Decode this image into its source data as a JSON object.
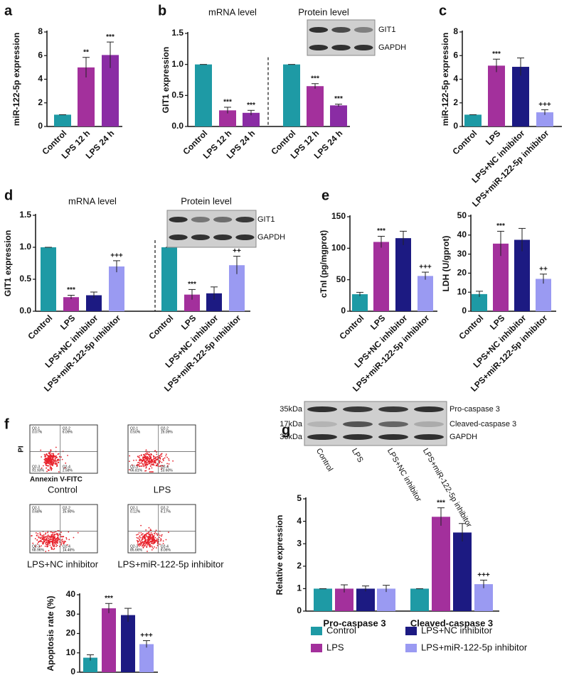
{
  "panel_labels": [
    "a",
    "b",
    "c",
    "d",
    "e",
    "f",
    "g"
  ],
  "blots": [
    {
      "bands": [
        "GIT1",
        "GAPDH"
      ]
    },
    {
      "bands": [
        "GIT1",
        "GAPDH"
      ]
    },
    {
      "sizes": [
        "35kDa",
        "17kDa",
        "36kDa"
      ],
      "bands": [
        "Pro-caspase 3",
        "Cleaved-caspase 3",
        "GAPDH"
      ]
    }
  ],
  "flow": {
    "x_label": "Annexin V-FITC",
    "y_label": "PI",
    "plots": [
      {
        "label": "Control",
        "quadrants": [
          {
            "name": "Q2-1",
            "percent": "0.07%"
          },
          {
            "name": "Q2-2",
            "percent": "6.09%"
          },
          {
            "name": "Q2-3",
            "percent": "91.93%"
          },
          {
            "name": "Q2-4",
            "percent": "2.58%"
          }
        ]
      },
      {
        "label": "LPS",
        "quadrants": [
          {
            "name": "Q2-1",
            "percent": "0.50%"
          },
          {
            "name": "Q2-2",
            "percent": "19.09%"
          },
          {
            "name": "Q2-3",
            "percent": "66.81%"
          },
          {
            "name": "Q2-4",
            "percent": "13.60%"
          }
        ]
      },
      {
        "label": "LPS+NC inhibitor",
        "quadrants": [
          {
            "name": "Q2-1",
            "percent": "0.68%"
          },
          {
            "name": "Q2-2",
            "percent": "15.90%"
          },
          {
            "name": "Q2-3",
            "percent": "68.96%"
          },
          {
            "name": "Q2-4",
            "percent": "14.46%"
          }
        ]
      },
      {
        "label": "LPS+miR-122-5p inhibitor",
        "quadrants": [
          {
            "name": "Q2-1",
            "percent": "0.12%"
          },
          {
            "name": "Q2-2",
            "percent": "6.17%"
          },
          {
            "name": "Q2-3",
            "percent": "85.66%"
          },
          {
            "name": "Q2-4",
            "percent": "8.06%"
          }
        ]
      }
    ]
  },
  "chart_data": [
    {
      "type": "bar",
      "ylabel": "miR-122-5p expression",
      "ylim": [
        0,
        8
      ],
      "yticks": [
        0,
        2,
        4,
        6,
        8
      ],
      "groups": [
        {
          "categories": [
            "Control",
            "LPS 12 h",
            "LPS 24 h"
          ],
          "values": [
            1,
            5,
            6.05
          ],
          "errors": [
            0,
            0.85,
            1.1
          ],
          "significance": [
            null,
            "**",
            "***"
          ],
          "colors": [
            "#1e9aa5",
            "#a3309c",
            "#8a2ca4"
          ]
        }
      ]
    },
    {
      "type": "bar",
      "ylabel": "GIT1 expression",
      "ylim": [
        0,
        1.5
      ],
      "yticks": [
        {
          "value": 0,
          "label": "0.0"
        },
        0.5,
        {
          "value": 1,
          "label": "1.0"
        },
        1.5
      ],
      "groups": [
        {
          "name": "mRNA level",
          "categories": [
            "Control",
            "LPS 12 h",
            "LPS 24 h"
          ],
          "values": [
            1,
            0.26,
            0.22
          ],
          "errors": [
            0,
            0.05,
            0.04
          ],
          "significance": [
            null,
            "***",
            "***"
          ],
          "colors": [
            "#1e9aa5",
            "#a3309c",
            "#8a2ca4"
          ]
        },
        {
          "name": "Protein level",
          "categories": [
            "Control",
            "LPS 12 h",
            "LPS 24 h"
          ],
          "values": [
            1,
            0.65,
            0.34
          ],
          "errors": [
            0,
            0.04,
            0.02
          ],
          "significance": [
            null,
            "***",
            "***"
          ],
          "colors": [
            "#1e9aa5",
            "#a3309c",
            "#8a2ca4"
          ]
        }
      ]
    },
    {
      "type": "bar",
      "ylabel": "miR-122-5p expression",
      "ylim": [
        0,
        8
      ],
      "yticks": [
        0,
        2,
        4,
        6,
        8
      ],
      "groups": [
        {
          "categories": [
            "Control",
            "LPS",
            "LPS+NC inhibitor",
            "LPS+miR-122-5p inhibitor"
          ],
          "values": [
            1,
            5.15,
            5.05,
            1.2
          ],
          "errors": [
            0,
            0.55,
            0.75,
            0.22
          ],
          "significance": [
            null,
            "***",
            null,
            "+++"
          ],
          "colors": [
            "#1e9aa5",
            "#a3309c",
            "#1c1a82",
            "#9a9af2"
          ]
        }
      ]
    },
    {
      "type": "bar",
      "ylabel": "GIT1 expression",
      "ylim": [
        0,
        1.5
      ],
      "yticks": [
        {
          "value": 0,
          "label": "0.0"
        },
        0.5,
        {
          "value": 1,
          "label": "1.0"
        },
        1.5
      ],
      "groups": [
        {
          "name": "mRNA level",
          "categories": [
            "Control",
            "LPS",
            "LPS+NC inhibitor",
            "LPS+miR-122-5p inhibitor"
          ],
          "values": [
            1,
            0.22,
            0.25,
            0.7
          ],
          "errors": [
            0,
            0.03,
            0.05,
            0.09
          ],
          "significance": [
            null,
            "***",
            null,
            "+++"
          ],
          "colors": [
            "#1e9aa5",
            "#a3309c",
            "#1c1a82",
            "#9a9af2"
          ]
        },
        {
          "name": "Protein level",
          "categories": [
            "Control",
            "LPS",
            "LPS+NC inhibitor",
            "LPS+miR-122-5p inhibitor"
          ],
          "values": [
            1,
            0.26,
            0.28,
            0.72
          ],
          "errors": [
            0,
            0.08,
            0.1,
            0.14
          ],
          "significance": [
            null,
            "***",
            null,
            "++"
          ],
          "colors": [
            "#1e9aa5",
            "#a3309c",
            "#1c1a82",
            "#9a9af2"
          ]
        }
      ]
    },
    {
      "type": "bar",
      "ylabel": "cTnI (pg/mgprot)",
      "ylim": [
        0,
        150
      ],
      "yticks": [
        0,
        50,
        100,
        150
      ],
      "groups": [
        {
          "categories": [
            "Control",
            "LPS",
            "LPS+NC inhibitor",
            "LPS+miR-122-5p inhibitor"
          ],
          "values": [
            27,
            110,
            116,
            56
          ],
          "errors": [
            3,
            9,
            11,
            6
          ],
          "significance": [
            null,
            "***",
            null,
            "+++"
          ],
          "colors": [
            "#1e9aa5",
            "#a3309c",
            "#1c1a82",
            "#9a9af2"
          ]
        }
      ]
    },
    {
      "type": "bar",
      "ylabel": "LDH (U/gprot)",
      "ylim": [
        0,
        50
      ],
      "yticks": [
        0,
        10,
        20,
        30,
        40,
        50
      ],
      "groups": [
        {
          "categories": [
            "Control",
            "LPS",
            "LPS+NC inhibitor",
            "LPS+miR-122-5p inhibitor"
          ],
          "values": [
            9,
            35.5,
            37.5,
            17
          ],
          "errors": [
            1.5,
            6.5,
            6,
            2.5
          ],
          "significance": [
            null,
            "***",
            null,
            "++"
          ],
          "colors": [
            "#1e9aa5",
            "#a3309c",
            "#1c1a82",
            "#9a9af2"
          ]
        }
      ]
    },
    {
      "type": "bar",
      "ylabel": "Apoptosis rate (%)",
      "ylim": [
        0,
        40
      ],
      "yticks": [
        0,
        10,
        20,
        30,
        40
      ],
      "groups": [
        {
          "values": [
            7.5,
            33,
            29.5,
            14.5
          ],
          "errors": [
            1.5,
            2.5,
            3.5,
            1.8
          ],
          "significance": [
            null,
            "***",
            null,
            "+++"
          ],
          "colors": [
            "#1e9aa5",
            "#a3309c",
            "#1c1a82",
            "#9a9af2"
          ]
        }
      ]
    },
    {
      "type": "grouped_bar",
      "ylabel": "Relative expression",
      "ylim": [
        0,
        5
      ],
      "yticks": [
        0,
        1,
        2,
        3,
        4,
        5
      ],
      "categories": [
        "Pro-caspase 3",
        "Cleaved-caspase 3"
      ],
      "series": [
        {
          "name": "Control",
          "color": "#1e9aa5",
          "values": [
            1,
            1
          ],
          "errors": [
            0,
            0
          ],
          "significance": [
            null,
            null
          ]
        },
        {
          "name": "LPS",
          "color": "#a3309c",
          "values": [
            1,
            4.2
          ],
          "errors": [
            0.17,
            0.4
          ],
          "significance": [
            null,
            "***"
          ]
        },
        {
          "name": "LPS+NC inhibitor",
          "color": "#1c1a82",
          "values": [
            1,
            3.5
          ],
          "errors": [
            0.12,
            0.4
          ],
          "significance": [
            null,
            null
          ]
        },
        {
          "name": "LPS+miR-122-5p inhibitor",
          "color": "#9a9af2",
          "values": [
            1,
            1.2
          ],
          "errors": [
            0.15,
            0.18
          ],
          "significance": [
            null,
            "+++"
          ]
        }
      ]
    }
  ]
}
